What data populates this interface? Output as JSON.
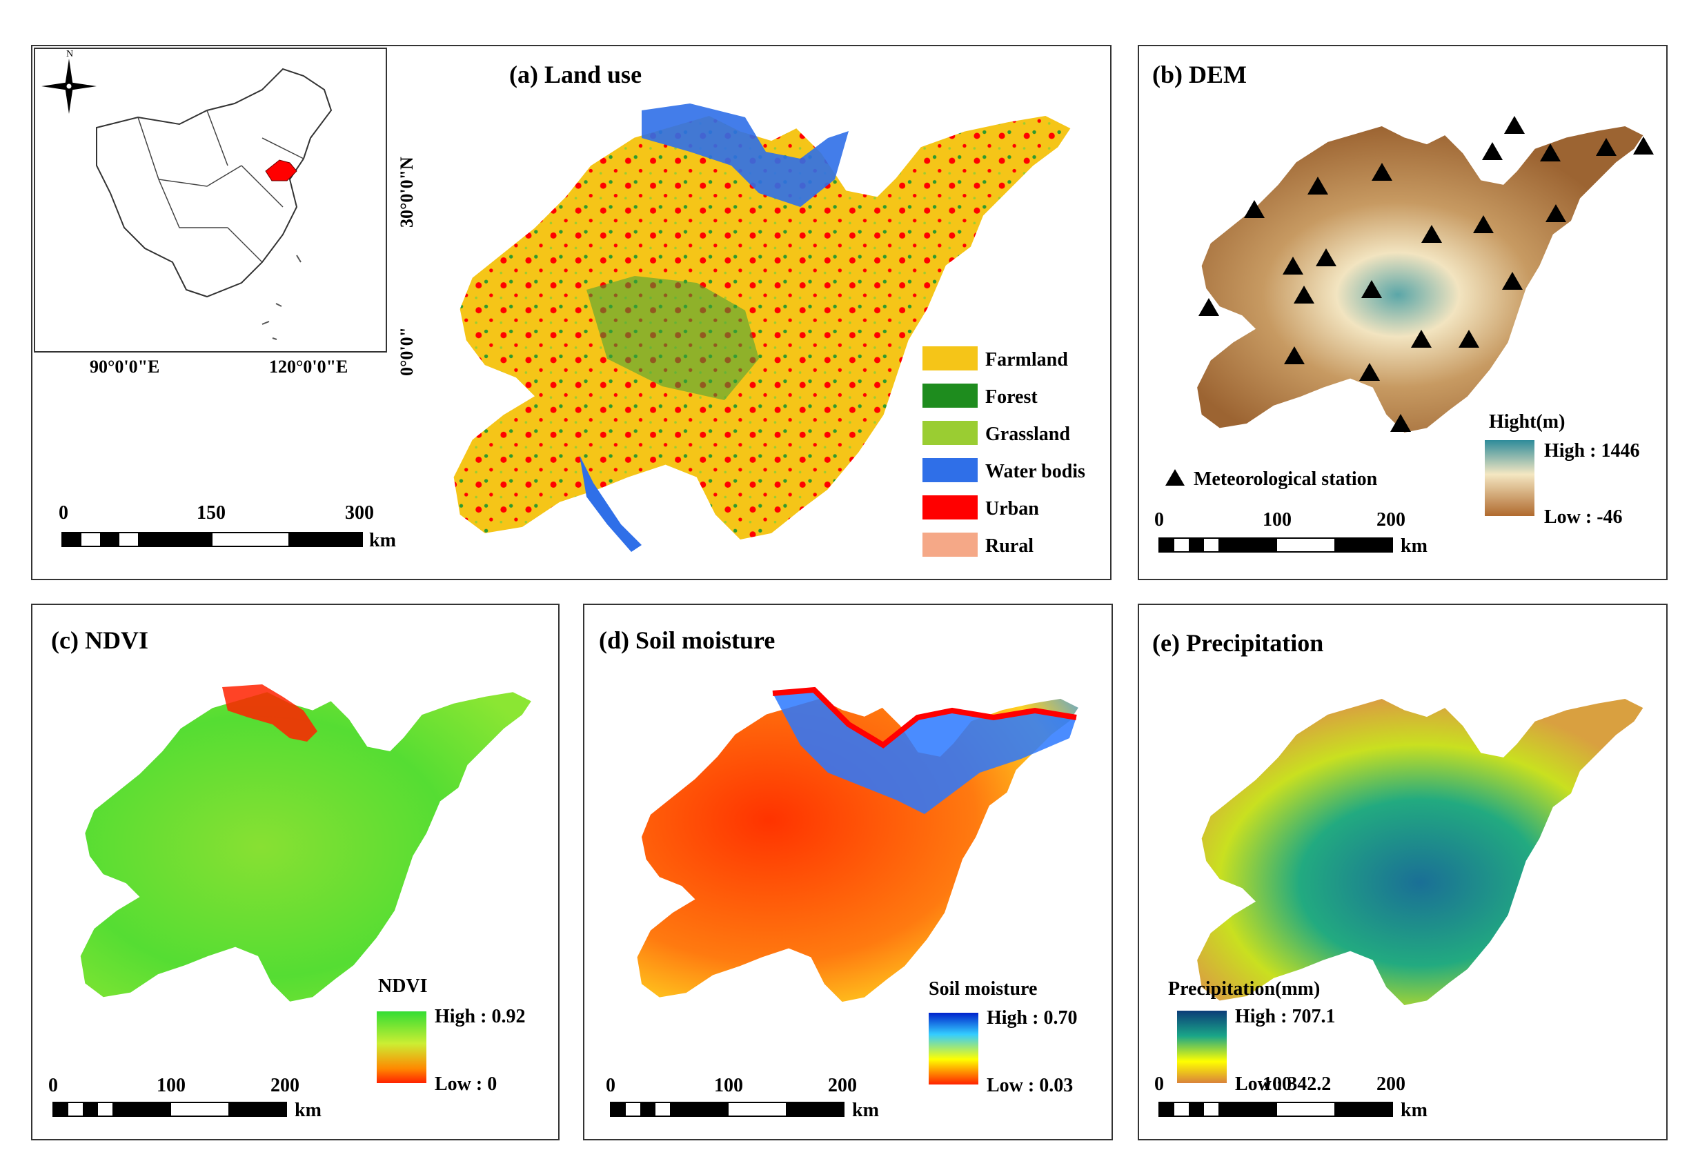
{
  "panels": {
    "land_use": {
      "title": "(a) Land use",
      "legend": [
        {
          "label": "Farmland",
          "color": "#f5c518"
        },
        {
          "label": "Forest",
          "color": "#1e8c1e"
        },
        {
          "label": "Grassland",
          "color": "#9acd32"
        },
        {
          "label": "Water bodis",
          "color": "#2f6fe8"
        },
        {
          "label": "Urban",
          "color": "#ff0000"
        },
        {
          "label": "Rural",
          "color": "#f5a887"
        }
      ],
      "scale_ticks": [
        "0",
        "150",
        "300"
      ],
      "scale_unit": "km",
      "inset": {
        "north_label": "N",
        "lon_labels": [
          "90°0'0\"E",
          "120°0'0\"E"
        ],
        "lat_labels": [
          "30°0'0\"N",
          "0°0'0\""
        ]
      }
    },
    "dem": {
      "title": "(b) DEM",
      "legend_title": "Hight(m)",
      "high": "High : 1446",
      "low": "Low : -46",
      "station_label": "Meteorological station",
      "scale_ticks": [
        "0",
        "100",
        "200"
      ],
      "scale_unit": "km",
      "colors": [
        "#2e8b9a",
        "#f4e7c2",
        "#b8864a",
        "#8b5a2b"
      ]
    },
    "ndvi": {
      "title": "(c) NDVI",
      "legend_title": "NDVI",
      "high": "High : 0.92",
      "low": "Low : 0",
      "scale_ticks": [
        "0",
        "100",
        "200"
      ],
      "scale_unit": "km",
      "colors": [
        "#33dd33",
        "#ccee33",
        "#ff8800",
        "#ff2200"
      ]
    },
    "soil": {
      "title": "(d) Soil moisture",
      "legend_title": "Soil moisture",
      "high": "High : 0.70",
      "low": "Low : 0.03",
      "scale_ticks": [
        "0",
        "100",
        "200"
      ],
      "scale_unit": "km",
      "colors": [
        "#0022cc",
        "#33ccff",
        "#ffff00",
        "#ff2200"
      ]
    },
    "precip": {
      "title": "(e) Precipitation",
      "legend_title": "Precipitation(mm)",
      "high": "High : 707.1",
      "low": "Low : 342.2",
      "scale_ticks": [
        "0",
        "100",
        "200"
      ],
      "scale_unit": "km",
      "colors": [
        "#0b3c78",
        "#1aa688",
        "#ffff00",
        "#d9823b"
      ]
    }
  }
}
